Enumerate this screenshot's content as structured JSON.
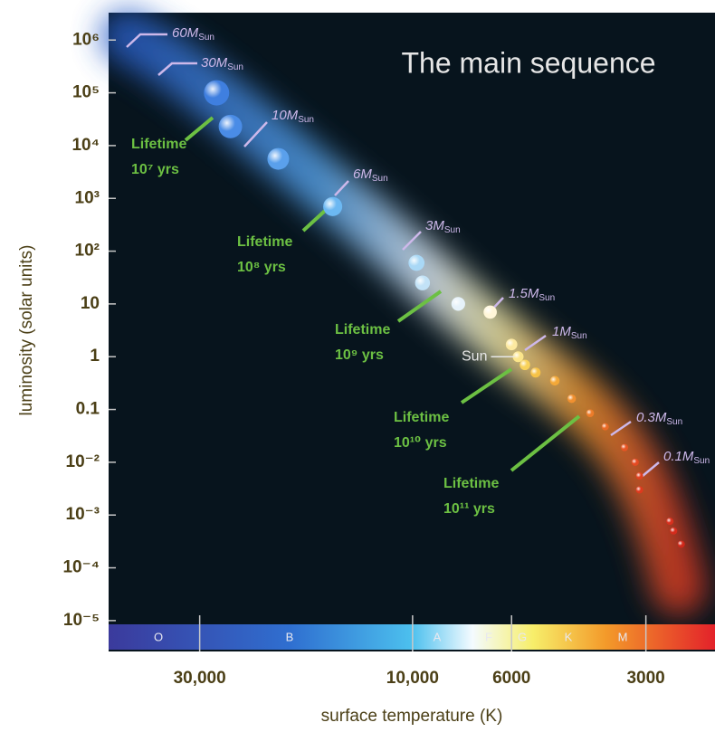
{
  "chart_data": {
    "type": "scatter",
    "title": "The main sequence",
    "y_label": "luminosity (solar units)",
    "x_label": "surface temperature (K)",
    "log_x": true,
    "log_y": true,
    "xlim": [
      48000,
      2100
    ],
    "ylim": [
      2.6e-06,
      3300000
    ],
    "xticks": [
      {
        "value": 30000,
        "label": "30,000"
      },
      {
        "value": 10000,
        "label": "10,000"
      },
      6000,
      3000
    ],
    "yticks": [
      {
        "value": 1000000,
        "label": "10⁶"
      },
      {
        "value": 100000,
        "label": "10⁵"
      },
      {
        "value": 10000,
        "label": "10⁴"
      },
      {
        "value": 1000,
        "label": "10³"
      },
      {
        "value": 100,
        "label": "10²"
      },
      10,
      1,
      0.1,
      {
        "value": 0.01,
        "label": "10⁻²"
      },
      {
        "value": 0.001,
        "label": "10⁻³"
      },
      {
        "value": 0.0001,
        "label": "10⁻⁴"
      },
      {
        "value": 1e-05,
        "label": "10⁻⁵"
      }
    ],
    "x": [
      27500,
      25600,
      20000,
      15100,
      9800,
      9500,
      7900,
      6700,
      6000,
      5800,
      5600,
      5300,
      4800,
      4400,
      4000,
      3700,
      3350,
      3170,
      3100,
      3100,
      2650,
      2600,
      2500
    ],
    "values": [
      100000,
      23000,
      5600,
      700,
      60,
      25,
      10,
      7,
      1.7,
      1,
      0.7,
      0.5,
      0.35,
      0.16,
      0.085,
      0.047,
      0.019,
      0.01,
      0.0055,
      0.003,
      0.00076,
      0.0005,
      0.00028
    ],
    "colors": [
      "#3f7fe0",
      "#4a8ce6",
      "#5aa0ec",
      "#6cb8f2",
      "#a9d8f6",
      "#c2e2f7",
      "#e6f2fa",
      "#fff6d8",
      "#fde9a0",
      "#fbe58a",
      "#f8d25a",
      "#f6c246",
      "#f3a838",
      "#f09030",
      "#ec7c2a",
      "#e96a26",
      "#e65524",
      "#e44a22",
      "#e04020",
      "#de3a1e",
      "#d8301e",
      "#d42c1c",
      "#cf281a"
    ],
    "sun_label": "Sun",
    "mass_labels": [
      {
        "text": "60M",
        "sub": "Sun"
      },
      {
        "text": "30M",
        "sub": "Sun"
      },
      {
        "text": "10M",
        "sub": "Sun"
      },
      {
        "text": "6M",
        "sub": "Sun"
      },
      {
        "text": "3M",
        "sub": "Sun"
      },
      {
        "text": "1.5M",
        "sub": "Sun"
      },
      {
        "text": "1M",
        "sub": "Sun"
      },
      {
        "text": "0.3M",
        "sub": "Sun"
      },
      {
        "text": "0.1M",
        "sub": "Sun"
      }
    ],
    "lifetimes": [
      {
        "line1": "Lifetime",
        "line2": "10⁷ yrs"
      },
      {
        "line1": "Lifetime",
        "line2": "10⁸ yrs"
      },
      {
        "line1": "Lifetime",
        "line2": "10⁹ yrs"
      },
      {
        "line1": "Lifetime",
        "line2": "10¹⁰ yrs"
      },
      {
        "line1": "Lifetime",
        "line2": "10¹¹ yrs"
      }
    ],
    "spectral_classes": [
      "O",
      "B",
      "A",
      "F",
      "G",
      "K",
      "M"
    ]
  }
}
